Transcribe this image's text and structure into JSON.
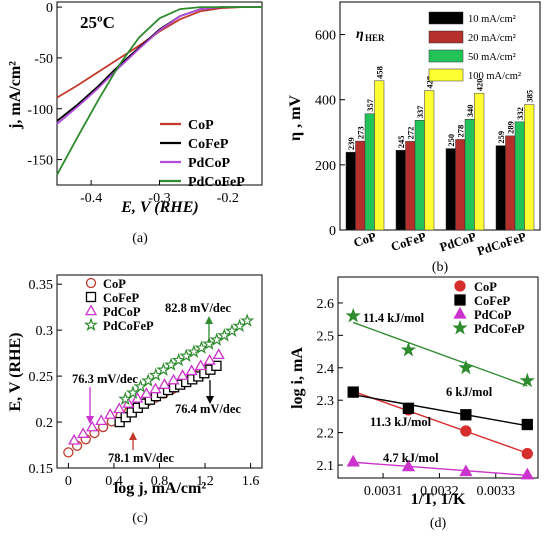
{
  "chart_data": [
    {
      "panel": "(a)",
      "type": "line",
      "annotation": "25ºC",
      "xlabel": "E, V (RHE)",
      "ylabel": "j, mA/cm²",
      "xlim": [
        -0.45,
        -0.15
      ],
      "ylim": [
        -175,
        5
      ],
      "xticks": [
        "-0.4",
        "-0.3",
        "-0.2"
      ],
      "xtick_values": [
        -0.4,
        -0.3,
        -0.2
      ],
      "yticks": [
        "0",
        "-50",
        "-100",
        "-150"
      ],
      "ytick_values": [
        0,
        -50,
        -100,
        -150
      ],
      "legend_position": "bottom-right",
      "series": [
        {
          "name": "CoP",
          "color": "#c0392b",
          "x": [
            -0.45,
            -0.42,
            -0.39,
            -0.36,
            -0.33,
            -0.3,
            -0.27,
            -0.24,
            -0.21,
            -0.18,
            -0.15
          ],
          "y": [
            -89,
            -77,
            -64,
            -51,
            -38,
            -24,
            -12,
            -4,
            -1,
            0,
            0
          ]
        },
        {
          "name": "CoFeP",
          "color": "#000000",
          "x": [
            -0.45,
            -0.42,
            -0.39,
            -0.36,
            -0.33,
            -0.3,
            -0.27,
            -0.24,
            -0.21,
            -0.18,
            -0.15
          ],
          "y": [
            -112,
            -96,
            -78,
            -58,
            -40,
            -22,
            -9,
            -2,
            0,
            0,
            0
          ]
        },
        {
          "name": "PdCoP",
          "color": "#b04cd8",
          "x": [
            -0.45,
            -0.42,
            -0.39,
            -0.36,
            -0.33,
            -0.3,
            -0.27,
            -0.24,
            -0.21,
            -0.18,
            -0.15
          ],
          "y": [
            -115,
            -98,
            -80,
            -60,
            -41,
            -23,
            -9,
            -2,
            0,
            0,
            0
          ]
        },
        {
          "name": "PdCoFeP",
          "color": "#2e8b2e",
          "x": [
            -0.45,
            -0.42,
            -0.39,
            -0.36,
            -0.33,
            -0.3,
            -0.27,
            -0.24,
            -0.21,
            -0.18,
            -0.15
          ],
          "y": [
            -165,
            -128,
            -92,
            -58,
            -30,
            -11,
            -2,
            0,
            0,
            0,
            0
          ]
        }
      ]
    },
    {
      "panel": "(b)",
      "type": "bar",
      "annotation": "ηHER",
      "ylabel": "η , mV",
      "ylim": [
        0,
        700
      ],
      "yticks": [
        "0",
        "200",
        "400",
        "600"
      ],
      "ytick_values": [
        0,
        200,
        400,
        600
      ],
      "categories": [
        "CoP",
        "CoFeP",
        "PdCoP",
        "PdCoFeP"
      ],
      "series": [
        {
          "name": "10 mA/cm²",
          "color": "#000000",
          "values": [
            239,
            245,
            250,
            259
          ]
        },
        {
          "name": "20 mA/cm²",
          "color": "#b5302a",
          "values": [
            273,
            272,
            278,
            289
          ]
        },
        {
          "name": "50 mA/cm²",
          "color": "#22c45a",
          "values": [
            357,
            337,
            340,
            332
          ]
        },
        {
          "name": "100 mA/cm²",
          "color": "#ffff33",
          "values": [
            458,
            428,
            420,
            385
          ]
        }
      ]
    },
    {
      "panel": "(c)",
      "type": "scatter",
      "xlabel": "log j, mA/cm²",
      "ylabel": "E, V (RHE)",
      "xlim": [
        -0.1,
        1.7
      ],
      "ylim": [
        0.15,
        0.36
      ],
      "xticks": [
        "0",
        "0.4",
        "0.8",
        "1.2",
        "1.6"
      ],
      "xtick_values": [
        0,
        0.4,
        0.8,
        1.2,
        1.6
      ],
      "yticks": [
        "0.15",
        "0.2",
        "0.25",
        "0.3",
        "0.35"
      ],
      "ytick_values": [
        0.15,
        0.2,
        0.25,
        0.3,
        0.35
      ],
      "annotations": [
        {
          "text": "82.8 mV/dec",
          "color": "#2e8b2e"
        },
        {
          "text": "76.3 mV/dec",
          "color": "#cc33cc"
        },
        {
          "text": "76.4 mV/dec",
          "color": "#000000"
        },
        {
          "text": "78.1 mV/dec",
          "color": "#c0392b"
        }
      ],
      "series": [
        {
          "name": "CoP",
          "color": "#c0392b",
          "marker": "circle",
          "x0": 0.0,
          "x1": 1.22,
          "y0": 0.167,
          "y1": 0.262
        },
        {
          "name": "CoFeP",
          "color": "#000000",
          "marker": "square",
          "x0": 0.45,
          "x1": 1.3,
          "y0": 0.2,
          "y1": 0.265
        },
        {
          "name": "PdCoP",
          "color": "#cc33cc",
          "marker": "triangle",
          "x0": 0.05,
          "x1": 1.32,
          "y0": 0.18,
          "y1": 0.277
        },
        {
          "name": "PdCoFeP",
          "color": "#2e8b2e",
          "marker": "star",
          "x0": 0.5,
          "x1": 1.57,
          "y0": 0.225,
          "y1": 0.314
        }
      ]
    },
    {
      "panel": "(d)",
      "type": "scatter",
      "xlabel": "1/T, 1/K",
      "ylabel": "log i, mA",
      "xlim": [
        0.00302,
        0.003375
      ],
      "ylim": [
        2.06,
        2.68
      ],
      "xticks": [
        "0.0031",
        "0.0032",
        "0.0033"
      ],
      "xtick_values": [
        0.0031,
        0.0032,
        0.0033
      ],
      "yticks": [
        "2.1",
        "2.2",
        "2.3",
        "2.4",
        "2.5",
        "2.6"
      ],
      "ytick_values": [
        2.1,
        2.2,
        2.3,
        2.4,
        2.5,
        2.6
      ],
      "x": [
        0.003047,
        0.003145,
        0.003247,
        0.003356
      ],
      "annotations": [
        {
          "text": "11.4 kJ/mol",
          "color": "#2e8b2e"
        },
        {
          "text": "6 kJ/mol",
          "color": "#000000"
        },
        {
          "text": "11.3 kJ/mol",
          "color": "#c0392b"
        },
        {
          "text": "4.7 kJ/mol",
          "color": "#cc33cc"
        }
      ],
      "series": [
        {
          "name": "CoP",
          "color": "#d62d2d",
          "marker": "circle",
          "values": [
            2.325,
            2.27,
            2.205,
            2.135
          ]
        },
        {
          "name": "CoFeP",
          "color": "#000000",
          "marker": "square",
          "values": [
            2.325,
            2.275,
            2.255,
            2.225
          ]
        },
        {
          "name": "PdCoP",
          "color": "#cc33cc",
          "marker": "triangle",
          "values": [
            2.11,
            2.095,
            2.08,
            2.07
          ]
        },
        {
          "name": "PdCoFeP",
          "color": "#2e8b2e",
          "marker": "star",
          "values": [
            2.56,
            2.455,
            2.4,
            2.36
          ]
        }
      ]
    }
  ]
}
